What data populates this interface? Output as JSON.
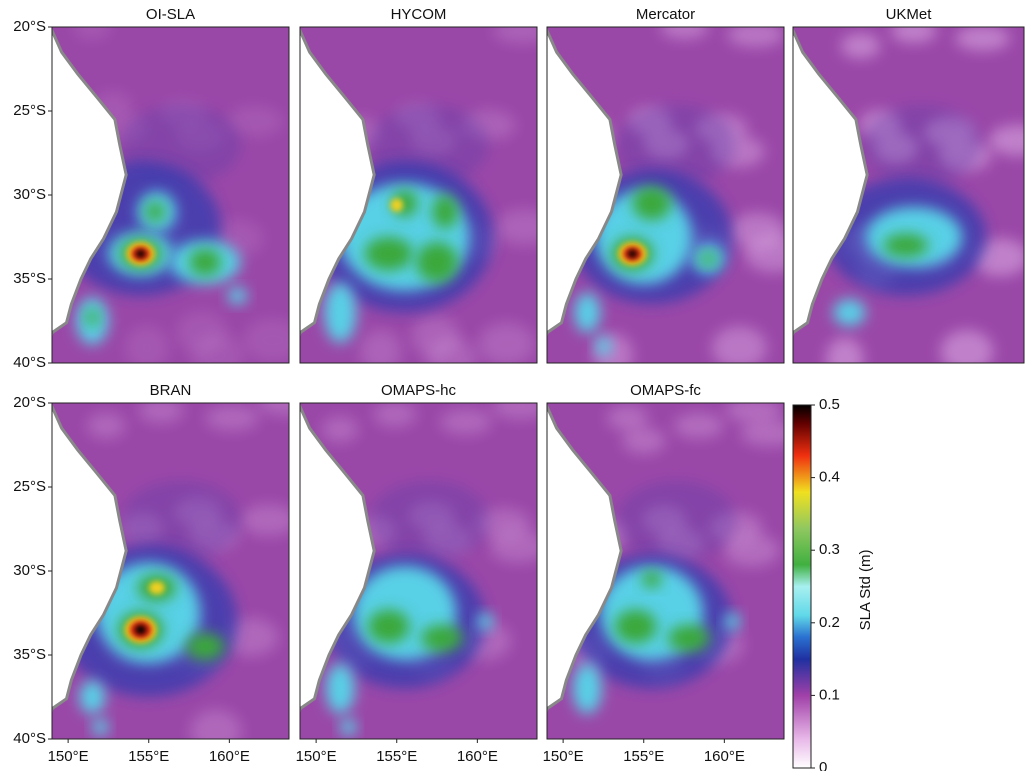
{
  "panels": [
    "OI-SLA",
    "HYCOM",
    "Mercator",
    "UKMet",
    "BRAN",
    "OMAPS-hc",
    "OMAPS-fc"
  ],
  "lat_lim": [
    -40,
    -20
  ],
  "lon_lim": [
    149,
    163.7
  ],
  "lat_ticks": [
    {
      "value": -20,
      "label": "20°S"
    },
    {
      "value": -25,
      "label": "25°S"
    },
    {
      "value": -30,
      "label": "30°S"
    },
    {
      "value": -35,
      "label": "35°S"
    },
    {
      "value": -40,
      "label": "40°S"
    }
  ],
  "lon_ticks": [
    {
      "value": 150,
      "label": "150°E"
    },
    {
      "value": 155,
      "label": "155°E"
    },
    {
      "value": 160,
      "label": "160°E"
    }
  ],
  "colorbar": {
    "label": "SLA Std (m)",
    "lim": [
      0,
      0.5
    ],
    "ticks": [
      0,
      0.1,
      0.2,
      0.3,
      0.4,
      0.5
    ]
  }
}
